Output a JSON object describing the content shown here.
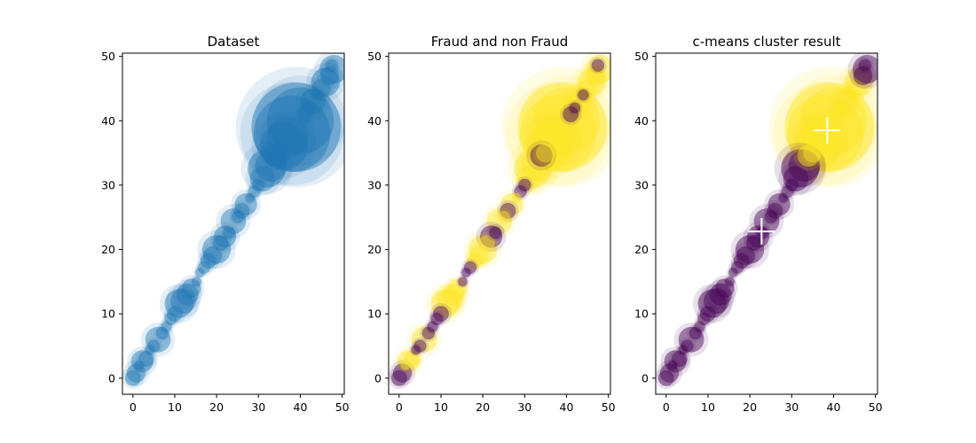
{
  "colors": {
    "dataset_point": "#1f77b4",
    "fraud": "#fde725",
    "non_fraud": "#440154",
    "centroid_marker": "#ffffff",
    "axis": "#000000"
  },
  "chart_data": [
    {
      "type": "scatter",
      "title": "Dataset",
      "xlabel": "",
      "ylabel": "",
      "xlim": [
        -2.5,
        50.5
      ],
      "ylim": [
        -2.5,
        50.5
      ],
      "xticks": [
        0,
        10,
        20,
        30,
        40,
        50
      ],
      "yticks": [
        0,
        10,
        20,
        30,
        40,
        50
      ],
      "color_mode": "single"
    },
    {
      "type": "scatter",
      "title": "Fraud and non Fraud",
      "xlabel": "",
      "ylabel": "",
      "xlim": [
        -2.5,
        50.5
      ],
      "ylim": [
        -2.5,
        50.5
      ],
      "xticks": [
        0,
        10,
        20,
        30,
        40,
        50
      ],
      "yticks": [
        0,
        10,
        20,
        30,
        40,
        50
      ],
      "color_mode": "label",
      "legend": "none"
    },
    {
      "type": "scatter",
      "title": "c-means cluster result",
      "xlabel": "",
      "ylabel": "",
      "xlim": [
        -2.5,
        50.5
      ],
      "ylim": [
        -2.5,
        50.5
      ],
      "xticks": [
        0,
        10,
        20,
        30,
        40,
        50
      ],
      "yticks": [
        0,
        10,
        20,
        30,
        40,
        50
      ],
      "color_mode": "cluster",
      "centroids": [
        {
          "x": 22.8,
          "y": 22.8
        },
        {
          "x": 38.5,
          "y": 38.5
        }
      ]
    }
  ],
  "points": [
    {
      "x": 0,
      "y": 0,
      "size": 1.0,
      "label": "non_fraud",
      "cluster": "A"
    },
    {
      "x": 0.8,
      "y": 0.8,
      "size": 1.2,
      "label": "non_fraud",
      "cluster": "A"
    },
    {
      "x": 1.5,
      "y": 2.0,
      "size": 0.6,
      "label": "fraud",
      "cluster": "A"
    },
    {
      "x": 2.2,
      "y": 2.6,
      "size": 1.4,
      "label": "fraud",
      "cluster": "A"
    },
    {
      "x": 3.2,
      "y": 3.0,
      "size": 1.0,
      "label": "fraud",
      "cluster": "A"
    },
    {
      "x": 4.0,
      "y": 4.4,
      "size": 0.6,
      "label": "non_fraud",
      "cluster": "A"
    },
    {
      "x": 5.0,
      "y": 5.0,
      "size": 0.8,
      "label": "non_fraud",
      "cluster": "A"
    },
    {
      "x": 6.0,
      "y": 6.0,
      "size": 1.6,
      "label": "fraud",
      "cluster": "A"
    },
    {
      "x": 7.0,
      "y": 7.0,
      "size": 0.8,
      "label": "non_fraud",
      "cluster": "A"
    },
    {
      "x": 8.0,
      "y": 8.0,
      "size": 0.7,
      "label": "non_fraud",
      "cluster": "A"
    },
    {
      "x": 9.0,
      "y": 9.2,
      "size": 0.8,
      "label": "non_fraud",
      "cluster": "A"
    },
    {
      "x": 10.0,
      "y": 10.0,
      "size": 1.0,
      "label": "non_fraud",
      "cluster": "A"
    },
    {
      "x": 11.0,
      "y": 11.6,
      "size": 1.8,
      "label": "fraud",
      "cluster": "A"
    },
    {
      "x": 12.0,
      "y": 12.0,
      "size": 1.6,
      "label": "fraud",
      "cluster": "A"
    },
    {
      "x": 13.0,
      "y": 13.0,
      "size": 1.4,
      "label": "fraud",
      "cluster": "A"
    },
    {
      "x": 14.0,
      "y": 14.0,
      "size": 1.2,
      "label": "fraud",
      "cluster": "A"
    },
    {
      "x": 15.2,
      "y": 15.0,
      "size": 0.6,
      "label": "non_fraud",
      "cluster": "A"
    },
    {
      "x": 16.0,
      "y": 16.4,
      "size": 0.6,
      "label": "non_fraud",
      "cluster": "A"
    },
    {
      "x": 17.0,
      "y": 17.2,
      "size": 0.8,
      "label": "non_fraud",
      "cluster": "A"
    },
    {
      "x": 18.0,
      "y": 18.2,
      "size": 1.0,
      "label": "fraud",
      "cluster": "A"
    },
    {
      "x": 19.0,
      "y": 19.0,
      "size": 1.2,
      "label": "fraud",
      "cluster": "A"
    },
    {
      "x": 20.0,
      "y": 20.0,
      "size": 1.8,
      "label": "fraud",
      "cluster": "A"
    },
    {
      "x": 21.0,
      "y": 21.0,
      "size": 1.0,
      "label": "fraud",
      "cluster": "A"
    },
    {
      "x": 22.0,
      "y": 22.0,
      "size": 1.4,
      "label": "non_fraud",
      "cluster": "A"
    },
    {
      "x": 23.0,
      "y": 22.6,
      "size": 0.8,
      "label": "non_fraud",
      "cluster": "A"
    },
    {
      "x": 24.0,
      "y": 24.4,
      "size": 1.6,
      "label": "fraud",
      "cluster": "A"
    },
    {
      "x": 25.0,
      "y": 25.0,
      "size": 0.8,
      "label": "fraud",
      "cluster": "A"
    },
    {
      "x": 26.0,
      "y": 26.0,
      "size": 1.0,
      "label": "non_fraud",
      "cluster": "A"
    },
    {
      "x": 27.0,
      "y": 27.0,
      "size": 1.4,
      "label": "fraud",
      "cluster": "A"
    },
    {
      "x": 28.0,
      "y": 28.0,
      "size": 0.6,
      "label": "fraud",
      "cluster": "A"
    },
    {
      "x": 29.0,
      "y": 29.0,
      "size": 0.8,
      "label": "non_fraud",
      "cluster": "A"
    },
    {
      "x": 30.0,
      "y": 30.0,
      "size": 0.8,
      "label": "non_fraud",
      "cluster": "A"
    },
    {
      "x": 31.0,
      "y": 31.0,
      "size": 1.6,
      "label": "fraud",
      "cluster": "A"
    },
    {
      "x": 32.0,
      "y": 32.6,
      "size": 2.4,
      "label": "fraud",
      "cluster": "A"
    },
    {
      "x": 33.0,
      "y": 33.0,
      "size": 2.0,
      "label": "fraud",
      "cluster": "A"
    },
    {
      "x": 34.0,
      "y": 34.6,
      "size": 1.4,
      "label": "non_fraud",
      "cluster": "B"
    },
    {
      "x": 35.0,
      "y": 35.0,
      "size": 1.2,
      "label": "fraud",
      "cluster": "B"
    },
    {
      "x": 36.0,
      "y": 36.0,
      "size": 3.0,
      "label": "fraud",
      "cluster": "B"
    },
    {
      "x": 37.0,
      "y": 37.4,
      "size": 2.6,
      "label": "fraud",
      "cluster": "B"
    },
    {
      "x": 38.0,
      "y": 38.0,
      "size": 4.8,
      "label": "fraud",
      "cluster": "B"
    },
    {
      "x": 39.0,
      "y": 39.0,
      "size": 5.6,
      "label": "fraud",
      "cluster": "B"
    },
    {
      "x": 40.0,
      "y": 40.0,
      "size": 4.2,
      "label": "fraud",
      "cluster": "B"
    },
    {
      "x": 41.0,
      "y": 41.0,
      "size": 1.0,
      "label": "non_fraud",
      "cluster": "B"
    },
    {
      "x": 42.0,
      "y": 42.0,
      "size": 0.7,
      "label": "non_fraud",
      "cluster": "B"
    },
    {
      "x": 43.0,
      "y": 43.0,
      "size": 1.6,
      "label": "fraud",
      "cluster": "B"
    },
    {
      "x": 44.0,
      "y": 44.0,
      "size": 0.7,
      "label": "non_fraud",
      "cluster": "B"
    },
    {
      "x": 45.0,
      "y": 45.0,
      "size": 1.2,
      "label": "fraud",
      "cluster": "B"
    },
    {
      "x": 46.0,
      "y": 46.0,
      "size": 1.8,
      "label": "fraud",
      "cluster": "B"
    },
    {
      "x": 47.0,
      "y": 47.0,
      "size": 1.2,
      "label": "fraud",
      "cluster": "A"
    },
    {
      "x": 48.0,
      "y": 48.0,
      "size": 1.8,
      "label": "fraud",
      "cluster": "A"
    },
    {
      "x": 47.5,
      "y": 48.6,
      "size": 0.8,
      "label": "non_fraud",
      "cluster": "A"
    }
  ]
}
